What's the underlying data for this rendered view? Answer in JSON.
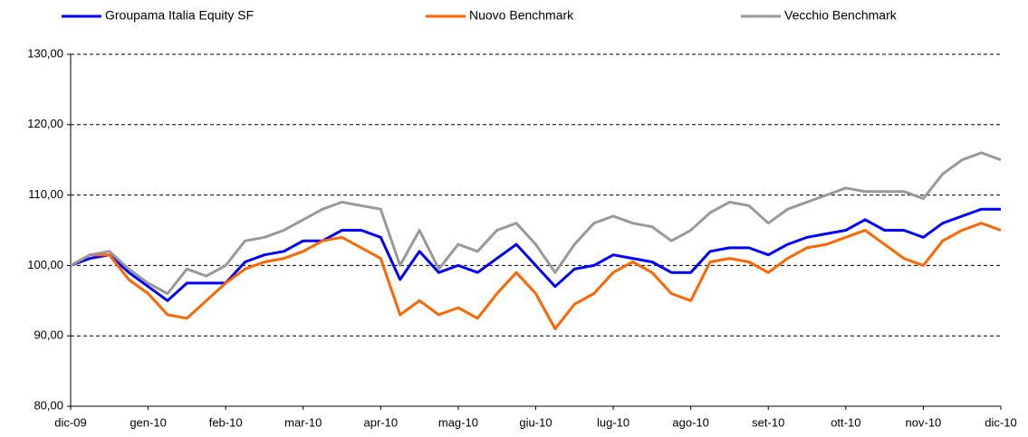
{
  "chart_data": {
    "type": "line",
    "categories": [
      "dic-09",
      null,
      null,
      null,
      "gen-10",
      null,
      null,
      null,
      "feb-10",
      null,
      null,
      null,
      "mar-10",
      null,
      null,
      null,
      "apr-10",
      null,
      null,
      null,
      "mag-10",
      null,
      null,
      null,
      "giu-10",
      null,
      null,
      null,
      "lug-10",
      null,
      null,
      null,
      "ago-10",
      null,
      null,
      null,
      "set-10",
      null,
      null,
      null,
      "ott-10",
      null,
      null,
      null,
      "nov-10",
      null,
      null,
      null,
      "dic-10"
    ],
    "series": [
      {
        "name": "Groupama Italia Equity SF",
        "color": "#0000ff",
        "values": [
          100,
          101,
          101.5,
          99,
          97,
          95,
          97.5,
          97.5,
          97.5,
          100.5,
          101.5,
          102,
          103.5,
          103.5,
          105,
          105,
          104,
          98,
          102,
          99,
          100,
          99,
          101,
          103,
          100,
          97,
          99.5,
          100,
          101.5,
          101,
          100.5,
          99,
          99,
          102,
          102.5,
          102.5,
          101.5,
          103,
          104,
          104.5,
          105,
          106.5,
          105,
          105,
          104,
          106,
          107,
          108,
          108
        ]
      },
      {
        "name": "Nuovo Benchmark",
        "color": "#ff6600",
        "values": [
          100,
          101.5,
          101.5,
          98,
          96,
          93,
          92.5,
          95,
          97.5,
          99.5,
          100.5,
          101,
          102,
          103.5,
          104,
          102.5,
          101,
          93,
          95,
          93,
          94,
          92.5,
          96,
          99,
          96,
          91,
          94.5,
          96,
          99,
          100.5,
          99,
          96,
          95,
          100.5,
          101,
          100.5,
          99,
          101,
          102.5,
          103,
          104,
          105,
          103,
          101,
          100,
          103.5,
          105,
          106,
          105
        ]
      },
      {
        "name": "Vecchio Benchmark",
        "color": "#999999",
        "values": [
          100,
          101.5,
          102,
          99.5,
          97.5,
          96,
          99.5,
          98.5,
          100,
          103.5,
          104,
          105,
          106.5,
          108,
          109,
          108.5,
          108,
          100,
          105,
          99.5,
          103,
          102,
          105,
          106,
          103,
          99,
          103,
          106,
          107,
          106,
          105.5,
          103.5,
          105,
          107.5,
          109,
          108.5,
          106,
          108,
          109,
          110,
          111,
          110.5,
          110.5,
          110.5,
          109.5,
          113,
          115,
          116,
          115
        ]
      }
    ],
    "ylim": [
      80,
      130
    ],
    "yticks": [
      {
        "value": 80,
        "label": "80,00"
      },
      {
        "value": 90,
        "label": "90,00"
      },
      {
        "value": 100,
        "label": "100,00"
      },
      {
        "value": 110,
        "label": "110,00"
      },
      {
        "value": 120,
        "label": "120,00"
      },
      {
        "value": 130,
        "label": "130,00"
      }
    ],
    "grid": true
  }
}
